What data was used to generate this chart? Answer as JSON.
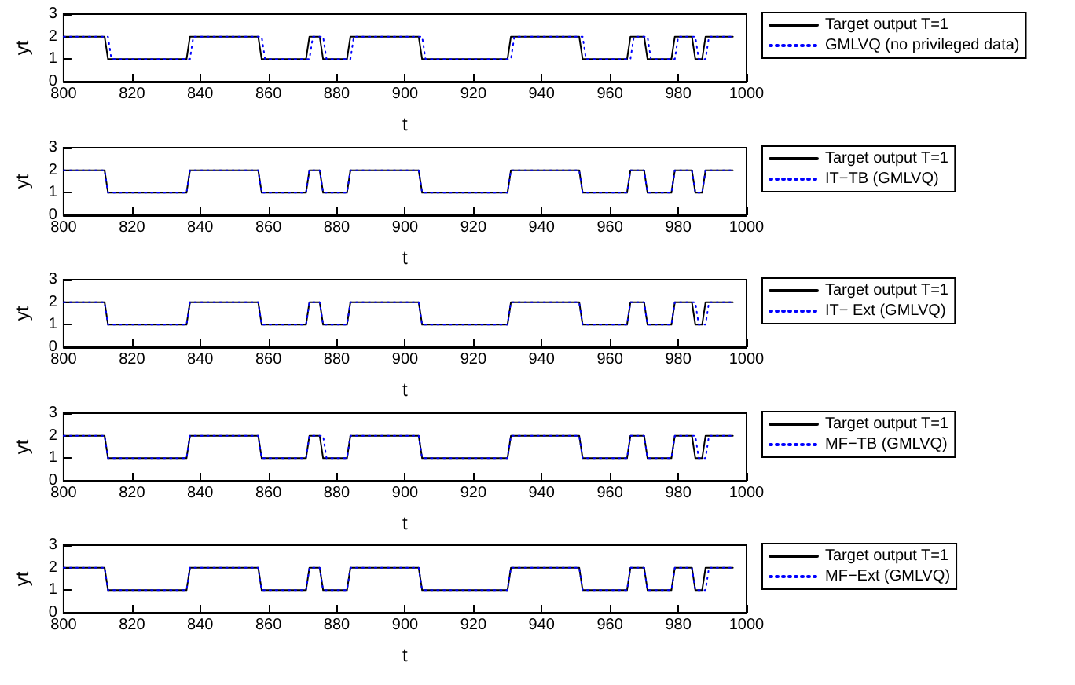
{
  "chart_data": [
    {
      "type": "line",
      "xlabel": "t",
      "ylabel": "yt",
      "xlim": [
        800,
        1000
      ],
      "xticks": [
        800,
        820,
        840,
        860,
        880,
        900,
        920,
        940,
        960,
        980,
        1000
      ],
      "ylim": [
        0,
        3
      ],
      "yticks": [
        0,
        1,
        2,
        3
      ],
      "grid": false,
      "legend": "right",
      "marker": "none",
      "series": [
        {
          "name": "Target output T=1",
          "color": "#000000",
          "line_style": "solid",
          "x": [
            800,
            812,
            813,
            836,
            837,
            857,
            858,
            871,
            872,
            875,
            876,
            883,
            884,
            904,
            905,
            930,
            931,
            951,
            952,
            965,
            966,
            970,
            971,
            978,
            979,
            984,
            985,
            987,
            988,
            996
          ],
          "values": [
            2,
            2,
            1,
            1,
            2,
            2,
            1,
            1,
            2,
            2,
            1,
            1,
            2,
            2,
            1,
            1,
            2,
            2,
            1,
            1,
            2,
            2,
            1,
            1,
            2,
            2,
            1,
            1,
            2,
            2
          ]
        },
        {
          "name": "GMLVQ (no privileged data)",
          "color": "#0000ff",
          "line_style": "dotted",
          "x": [
            800,
            813,
            814,
            837,
            838,
            858,
            859,
            872,
            873,
            876,
            877,
            884,
            885,
            905,
            906,
            931,
            932,
            952,
            953,
            966,
            967,
            971,
            972,
            979,
            980,
            985,
            986,
            988,
            989,
            996
          ],
          "values": [
            2,
            2,
            1,
            1,
            2,
            2,
            1,
            1,
            2,
            2,
            1,
            1,
            2,
            2,
            1,
            1,
            2,
            2,
            1,
            1,
            2,
            2,
            1,
            1,
            2,
            2,
            1,
            1,
            2,
            2
          ]
        }
      ]
    },
    {
      "type": "line",
      "xlabel": "t",
      "ylabel": "yt",
      "xlim": [
        800,
        1000
      ],
      "xticks": [
        800,
        820,
        840,
        860,
        880,
        900,
        920,
        940,
        960,
        980,
        1000
      ],
      "ylim": [
        0,
        3
      ],
      "yticks": [
        0,
        1,
        2,
        3
      ],
      "grid": false,
      "legend": "right",
      "marker": "none",
      "series": [
        {
          "name": "Target output T=1",
          "color": "#000000",
          "line_style": "solid",
          "x": [
            800,
            812,
            813,
            836,
            837,
            857,
            858,
            871,
            872,
            875,
            876,
            883,
            884,
            904,
            905,
            930,
            931,
            951,
            952,
            965,
            966,
            970,
            971,
            978,
            979,
            984,
            985,
            987,
            988,
            996
          ],
          "values": [
            2,
            2,
            1,
            1,
            2,
            2,
            1,
            1,
            2,
            2,
            1,
            1,
            2,
            2,
            1,
            1,
            2,
            2,
            1,
            1,
            2,
            2,
            1,
            1,
            2,
            2,
            1,
            1,
            2,
            2
          ]
        },
        {
          "name": "IT−TB (GMLVQ)",
          "color": "#0000ff",
          "line_style": "dotted",
          "x": [
            800,
            812,
            813,
            836,
            837,
            857,
            858,
            871,
            872,
            875,
            876,
            883,
            884,
            904,
            905,
            930,
            931,
            951,
            952,
            965,
            966,
            970,
            971,
            978,
            979,
            984,
            985,
            987,
            988,
            996
          ],
          "values": [
            2,
            2,
            1,
            1,
            2,
            2,
            1,
            1,
            2,
            2,
            1,
            1,
            2,
            2,
            1,
            1,
            2,
            2,
            1,
            1,
            2,
            2,
            1,
            1,
            2,
            2,
            1,
            1,
            2,
            2
          ]
        }
      ]
    },
    {
      "type": "line",
      "xlabel": "t",
      "ylabel": "yt",
      "xlim": [
        800,
        1000
      ],
      "xticks": [
        800,
        820,
        840,
        860,
        880,
        900,
        920,
        940,
        960,
        980,
        1000
      ],
      "ylim": [
        0,
        3
      ],
      "yticks": [
        0,
        1,
        2,
        3
      ],
      "grid": false,
      "legend": "right",
      "marker": "none",
      "series": [
        {
          "name": "Target output T=1",
          "color": "#000000",
          "line_style": "solid",
          "x": [
            800,
            812,
            813,
            836,
            837,
            857,
            858,
            871,
            872,
            875,
            876,
            883,
            884,
            904,
            905,
            930,
            931,
            951,
            952,
            965,
            966,
            970,
            971,
            978,
            979,
            984,
            985,
            987,
            988,
            996
          ],
          "values": [
            2,
            2,
            1,
            1,
            2,
            2,
            1,
            1,
            2,
            2,
            1,
            1,
            2,
            2,
            1,
            1,
            2,
            2,
            1,
            1,
            2,
            2,
            1,
            1,
            2,
            2,
            1,
            1,
            2,
            2
          ]
        },
        {
          "name": "IT− Ext (GMLVQ)",
          "color": "#0000ff",
          "line_style": "dotted",
          "x": [
            800,
            812,
            813,
            836,
            837,
            857,
            858,
            871,
            872,
            875,
            876,
            883,
            884,
            904,
            905,
            930,
            931,
            951,
            952,
            965,
            966,
            970,
            971,
            978,
            979,
            985,
            986,
            988,
            989,
            996
          ],
          "values": [
            2,
            2,
            1,
            1,
            2,
            2,
            1,
            1,
            2,
            2,
            1,
            1,
            2,
            2,
            1,
            1,
            2,
            2,
            1,
            1,
            2,
            2,
            1,
            1,
            2,
            2,
            1,
            1,
            2,
            2
          ]
        }
      ]
    },
    {
      "type": "line",
      "xlabel": "t",
      "ylabel": "yt",
      "xlim": [
        800,
        1000
      ],
      "xticks": [
        800,
        820,
        840,
        860,
        880,
        900,
        920,
        940,
        960,
        980,
        1000
      ],
      "ylim": [
        0,
        3
      ],
      "yticks": [
        0,
        1,
        2,
        3
      ],
      "grid": false,
      "legend": "right",
      "marker": "none",
      "series": [
        {
          "name": "Target output T=1",
          "color": "#000000",
          "line_style": "solid",
          "x": [
            800,
            812,
            813,
            836,
            837,
            857,
            858,
            871,
            872,
            875,
            876,
            883,
            884,
            904,
            905,
            930,
            931,
            951,
            952,
            965,
            966,
            970,
            971,
            978,
            979,
            984,
            985,
            987,
            988,
            996
          ],
          "values": [
            2,
            2,
            1,
            1,
            2,
            2,
            1,
            1,
            2,
            2,
            1,
            1,
            2,
            2,
            1,
            1,
            2,
            2,
            1,
            1,
            2,
            2,
            1,
            1,
            2,
            2,
            1,
            1,
            2,
            2
          ]
        },
        {
          "name": "MF−TB (GMLVQ)",
          "color": "#0000ff",
          "line_style": "dotted",
          "x": [
            800,
            812,
            813,
            836,
            837,
            857,
            858,
            871,
            872,
            876,
            877,
            883,
            884,
            904,
            905,
            930,
            931,
            951,
            952,
            965,
            966,
            970,
            971,
            978,
            979,
            985,
            986,
            988,
            989,
            996
          ],
          "values": [
            2,
            2,
            1,
            1,
            2,
            2,
            1,
            1,
            2,
            2,
            1,
            1,
            2,
            2,
            1,
            1,
            2,
            2,
            1,
            1,
            2,
            2,
            1,
            1,
            2,
            2,
            1,
            1,
            2,
            2
          ]
        }
      ]
    },
    {
      "type": "line",
      "xlabel": "t",
      "ylabel": "yt",
      "xlim": [
        800,
        1000
      ],
      "xticks": [
        800,
        820,
        840,
        860,
        880,
        900,
        920,
        940,
        960,
        980,
        1000
      ],
      "ylim": [
        0,
        3
      ],
      "yticks": [
        0,
        1,
        2,
        3
      ],
      "grid": false,
      "legend": "right",
      "marker": "none",
      "series": [
        {
          "name": "Target output T=1",
          "color": "#000000",
          "line_style": "solid",
          "x": [
            800,
            812,
            813,
            836,
            837,
            857,
            858,
            871,
            872,
            875,
            876,
            883,
            884,
            904,
            905,
            930,
            931,
            951,
            952,
            965,
            966,
            970,
            971,
            978,
            979,
            984,
            985,
            987,
            988,
            996
          ],
          "values": [
            2,
            2,
            1,
            1,
            2,
            2,
            1,
            1,
            2,
            2,
            1,
            1,
            2,
            2,
            1,
            1,
            2,
            2,
            1,
            1,
            2,
            2,
            1,
            1,
            2,
            2,
            1,
            1,
            2,
            2
          ]
        },
        {
          "name": "MF−Ext (GMLVQ)",
          "color": "#0000ff",
          "line_style": "dotted",
          "x": [
            800,
            812,
            813,
            836,
            837,
            857,
            858,
            871,
            872,
            875,
            876,
            883,
            884,
            904,
            905,
            930,
            931,
            951,
            952,
            965,
            966,
            970,
            971,
            978,
            979,
            984,
            985,
            988,
            989,
            996
          ],
          "values": [
            2,
            2,
            1,
            1,
            2,
            2,
            1,
            1,
            2,
            2,
            1,
            1,
            2,
            2,
            1,
            1,
            2,
            2,
            1,
            1,
            2,
            2,
            1,
            1,
            2,
            2,
            1,
            1,
            2,
            2
          ]
        }
      ]
    }
  ]
}
